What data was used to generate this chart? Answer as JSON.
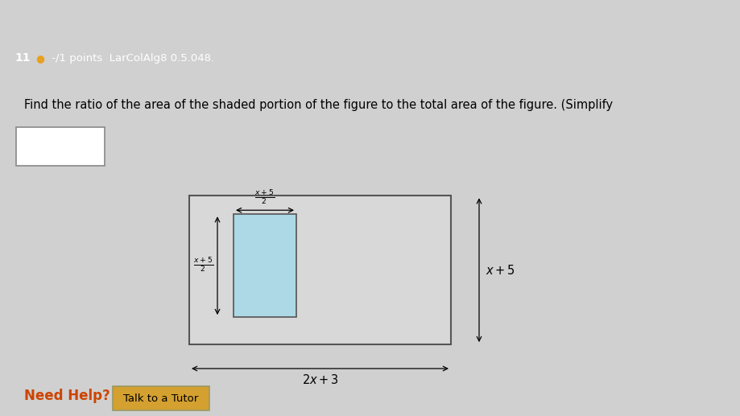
{
  "header_bg": "#8bafc8",
  "content_bg": "#e8e8e8",
  "top_strip_bg": "#d0d0d0",
  "header_num": "11",
  "header_dot_color": "#e8a020",
  "header_rest": " -/1 points  LarColAlg8 0.5.048.",
  "question": "Find the ratio of the area of the shaded portion of the figure to the total area of the figure. (Simplify",
  "outer_rect_face": "#d8d8d8",
  "outer_rect_edge": "#555555",
  "inner_rect_face": "#add8e6",
  "inner_rect_edge": "#555555",
  "ans_box_face": "white",
  "ans_box_edge": "#888888",
  "need_help_color": "#cc4400",
  "btn_face": "#d4a030",
  "btn_edge": "#999966",
  "btn_text": "Talk to a Tutor",
  "arrow_color": "black",
  "label_top": "$\\frac{x+5}{2}$",
  "label_left": "$\\frac{x+5}{2}$",
  "label_right": "$x+5$",
  "label_bottom": "$2x+3$"
}
